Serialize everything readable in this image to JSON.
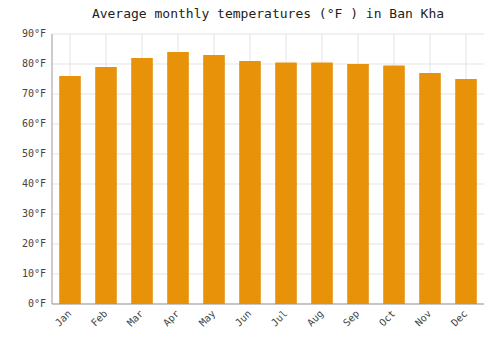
{
  "chart_data": {
    "type": "bar",
    "title": "Average monthly temperatures (°F ) in Ban Kha",
    "categories": [
      "Jan",
      "Feb",
      "Mar",
      "Apr",
      "May",
      "Jun",
      "Jul",
      "Aug",
      "Sep",
      "Oct",
      "Nov",
      "Dec"
    ],
    "values": [
      76,
      79,
      82,
      84,
      83,
      81,
      80.5,
      80.5,
      80,
      79.5,
      77,
      75
    ],
    "color": "#E8920A",
    "ylim": [
      0,
      90
    ],
    "yticks": [
      {
        "value": 0,
        "label": "0°F"
      },
      {
        "value": 10,
        "label": "10°F"
      },
      {
        "value": 20,
        "label": "20°F"
      },
      {
        "value": 30,
        "label": "30°F"
      },
      {
        "value": 40,
        "label": "40°F"
      },
      {
        "value": 50,
        "label": "50°F"
      },
      {
        "value": 60,
        "label": "60°F"
      },
      {
        "value": 70,
        "label": "70°F"
      },
      {
        "value": 80,
        "label": "80°F"
      },
      {
        "value": 90,
        "label": "90°F"
      }
    ],
    "grid": true
  }
}
